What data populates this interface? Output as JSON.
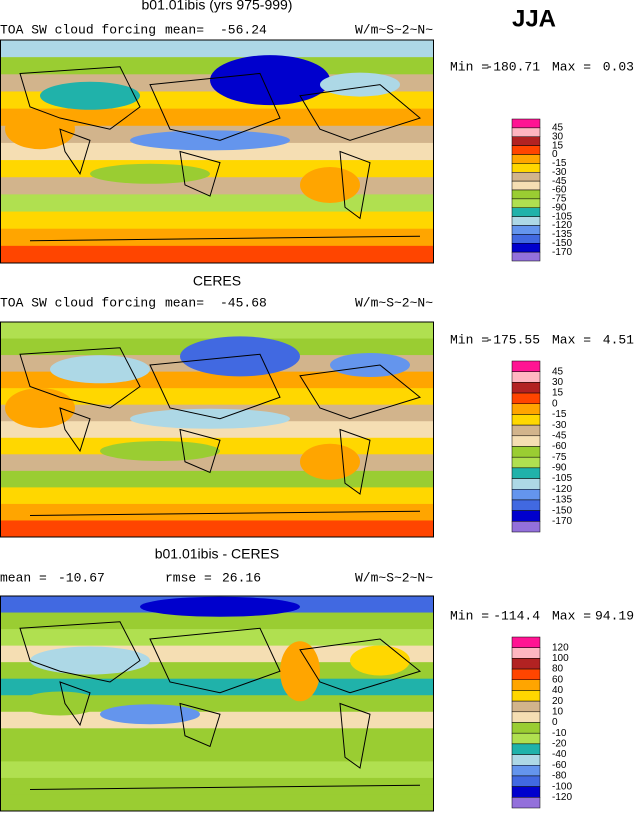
{
  "season": "JJA",
  "panels": [
    {
      "title": "b01.01ibis (yrs 975-999)",
      "subtitle": "TOA SW cloud forcing",
      "mean_label": "mean=",
      "mean": -56.24,
      "units": "W/m~S~2~N~",
      "min_label": "Min =",
      "min": -180.71,
      "max_label": "Max =",
      "max": 0.03,
      "levels": [
        45,
        30,
        15,
        0,
        -15,
        -30,
        -45,
        -60,
        -75,
        -90,
        -105,
        -120,
        -135,
        -150,
        -170
      ],
      "colors": [
        "#ff1493",
        "#ffb6c1",
        "#b22222",
        "#ff4500",
        "#ffa500",
        "#ffd700",
        "#d2b48c",
        "#f5deb3",
        "#9acd32",
        "#b0e050",
        "#20b2aa",
        "#add8e6",
        "#6495ed",
        "#4169e1",
        "#0000cd",
        "#9370db"
      ]
    },
    {
      "title": "CERES",
      "subtitle": "TOA SW cloud forcing",
      "mean_label": "mean=",
      "mean": -45.68,
      "units": "W/m~S~2~N~",
      "min_label": "Min =",
      "min": -175.55,
      "max_label": "Max =",
      "max": 4.51,
      "levels": [
        45,
        30,
        15,
        0,
        -15,
        -30,
        -45,
        -60,
        -75,
        -90,
        -105,
        -120,
        -135,
        -150,
        -170
      ],
      "colors": [
        "#ff1493",
        "#ffb6c1",
        "#b22222",
        "#ff4500",
        "#ffa500",
        "#ffd700",
        "#d2b48c",
        "#f5deb3",
        "#9acd32",
        "#b0e050",
        "#20b2aa",
        "#add8e6",
        "#6495ed",
        "#4169e1",
        "#0000cd",
        "#9370db"
      ]
    },
    {
      "title": "b01.01ibis - CERES",
      "mean_label": "mean =",
      "mean": -10.67,
      "rmse_label": "rmse =",
      "rmse": 26.16,
      "units": "W/m~S~2~N~",
      "min_label": "Min =",
      "min": -114.4,
      "max_label": "Max =",
      "max": 94.19,
      "levels": [
        120,
        100,
        80,
        60,
        40,
        20,
        10,
        0,
        -10,
        -20,
        -40,
        -60,
        -80,
        -100,
        -120
      ],
      "colors": [
        "#ff1493",
        "#ffb6c1",
        "#b22222",
        "#ff4500",
        "#ffa500",
        "#ffd700",
        "#d2b48c",
        "#f5deb3",
        "#9acd32",
        "#b0e050",
        "#20b2aa",
        "#add8e6",
        "#6495ed",
        "#4169e1",
        "#0000cd",
        "#9370db"
      ]
    }
  ]
}
